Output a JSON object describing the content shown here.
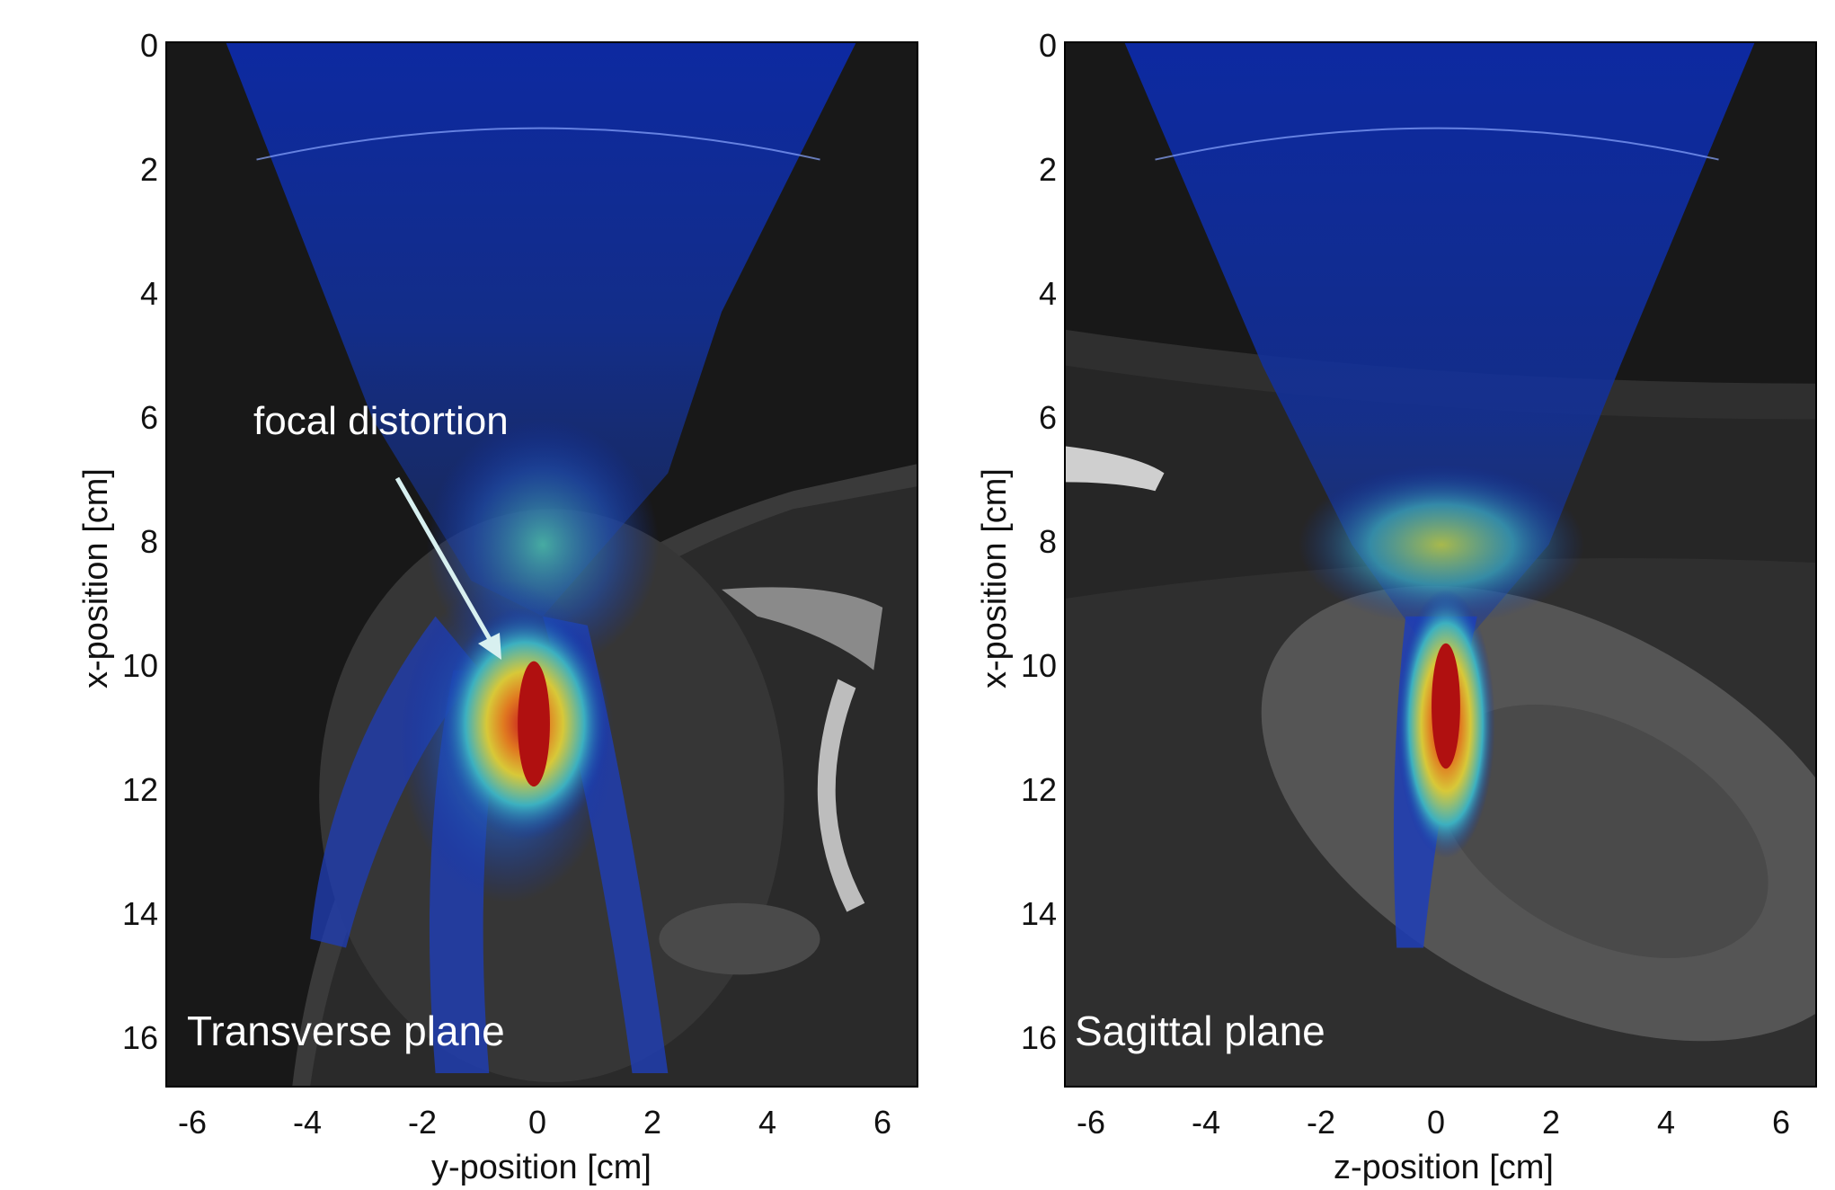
{
  "panels": [
    {
      "id": "transverse",
      "plane_label": "Transverse plane",
      "xlabel": "y-position [cm]",
      "ylabel": "x-position [cm]",
      "x_ticks": [
        "-6",
        "-4",
        "-2",
        "0",
        "2",
        "4",
        "6"
      ],
      "y_ticks": [
        "0",
        "2",
        "4",
        "6",
        "8",
        "10",
        "12",
        "14",
        "16"
      ],
      "annotation": "focal distortion"
    },
    {
      "id": "sagittal",
      "plane_label": "Sagittal plane",
      "xlabel": "z-position [cm]",
      "ylabel": "x-position [cm]",
      "x_ticks": [
        "-6",
        "-4",
        "-2",
        "0",
        "2",
        "4",
        "6"
      ],
      "y_ticks": [
        "0",
        "2",
        "4",
        "6",
        "8",
        "10",
        "12",
        "14",
        "16"
      ]
    }
  ],
  "colors": {
    "background": "#181818",
    "beam_blue": "#1030b0",
    "focus_red": "#c81e1e",
    "focus_yellow": "#e8c830",
    "focus_cyan": "#40b8c8",
    "arrow": "#d8f0f0"
  }
}
